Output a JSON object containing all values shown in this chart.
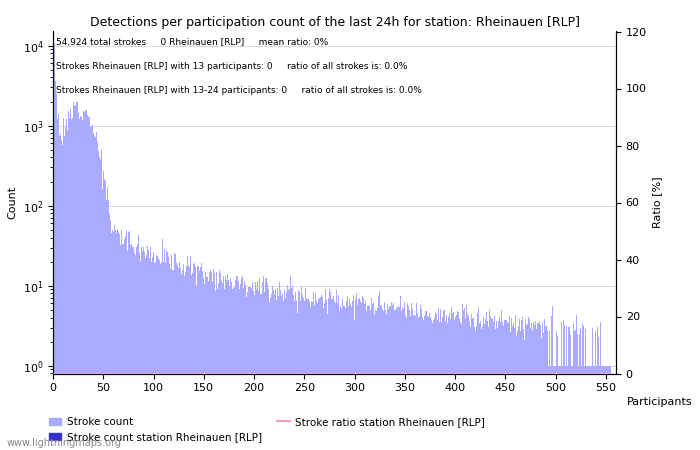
{
  "title": "Detections per participation count of the last 24h for station: Rheinauen [RLP]",
  "annotations": [
    "54,924 total strokes     0 Rheinauen [RLP]     mean ratio: 0%",
    "Strokes Rheinauen [RLP] with 13 participants: 0     ratio of all strokes is: 0.0%",
    "Strokes Rheinauen [RLP] with 13-24 participants: 0     ratio of all strokes is: 0.0%"
  ],
  "ylabel_left": "Count",
  "ylabel_right": "Ratio [%]",
  "xlim": [
    0,
    560
  ],
  "ylim_right": [
    0,
    120
  ],
  "bar_color": "#aaaaff",
  "bar_color_station": "#3333cc",
  "ratio_line_color": "#ff99cc",
  "legend_labels": [
    "Stroke count",
    "Stroke count station Rheinauen [RLP]",
    "Stroke ratio station Rheinauen [RLP]"
  ],
  "watermark": "www.lightningmaps.org",
  "yticks_right": [
    0,
    20,
    40,
    60,
    80,
    100,
    120
  ],
  "xticks": [
    0,
    50,
    100,
    150,
    200,
    250,
    300,
    350,
    400,
    450,
    500,
    550
  ],
  "participants_label": "Participants"
}
